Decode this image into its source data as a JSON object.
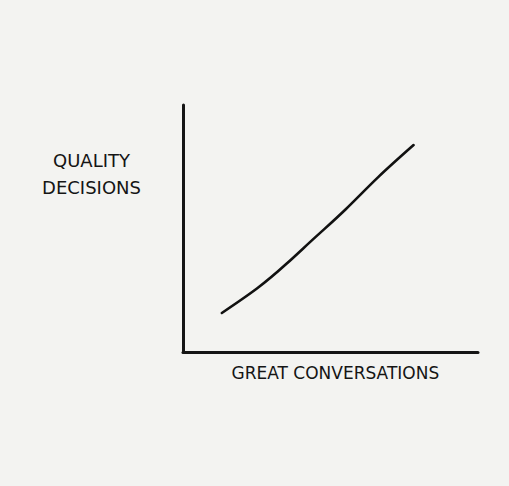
{
  "chart_data": {
    "type": "line",
    "x_label": "GREAT CONVERSATIONS",
    "y_label": "QUALITY DECISIONS",
    "x": [
      1.3,
      2.5,
      3.5,
      4.5,
      5.5,
      6.6,
      7.8
    ],
    "values": [
      1.6,
      2.6,
      3.6,
      4.7,
      5.8,
      7.1,
      8.4
    ],
    "color": "#111111",
    "xlim": [
      0,
      10
    ],
    "ylim": [
      0,
      10
    ],
    "grid": false,
    "tick_labels": false
  }
}
